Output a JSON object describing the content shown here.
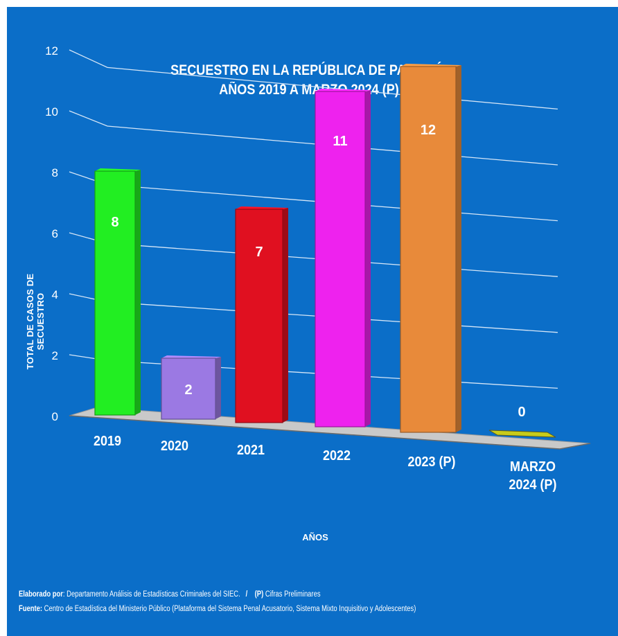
{
  "chart_data": {
    "type": "bar",
    "title_lines": [
      "SECUESTRO EN LA REPÚBLICA DE PANAMÁ:",
      "AÑOS 2019 A MARZO 2024 (P)"
    ],
    "ylabel": "TOTAL DE CASOS DE SECUESTRO",
    "xlabel": "AÑOS",
    "categories": [
      [
        "2019"
      ],
      [
        "2020"
      ],
      [
        "2021"
      ],
      [
        "2022"
      ],
      [
        "2023 (P)"
      ],
      [
        "MARZO",
        "2024 (P)"
      ]
    ],
    "values": [
      8,
      2,
      7,
      11,
      12,
      0
    ],
    "value_labels": [
      "8",
      "2",
      "7",
      "11",
      "12",
      "0"
    ],
    "colors": [
      "#22ee22",
      "#9b79e3",
      "#e01020",
      "#ee22ee",
      "#e88a3a",
      "#c8cc1a"
    ],
    "yticks": [
      "0",
      "2",
      "4",
      "6",
      "8",
      "10",
      "12"
    ],
    "ylim": [
      0,
      12
    ],
    "grid": true,
    "legend": "none"
  },
  "footer": {
    "line1_label": "Elaborado por",
    "line1_text": ": Departamento Análisis de Estadísticas Criminales del SIEC.",
    "line1_sep": "/",
    "line1_p": "(P)",
    "line1_p_text": "Cifras Preliminares",
    "line2_label": "Fuente:",
    "line2_text": "Centro de Estadística del Ministerio Público (Plataforma del Sistema Penal Acusatorio, Sistema Mixto Inquisitivo y Adolescentes)"
  }
}
